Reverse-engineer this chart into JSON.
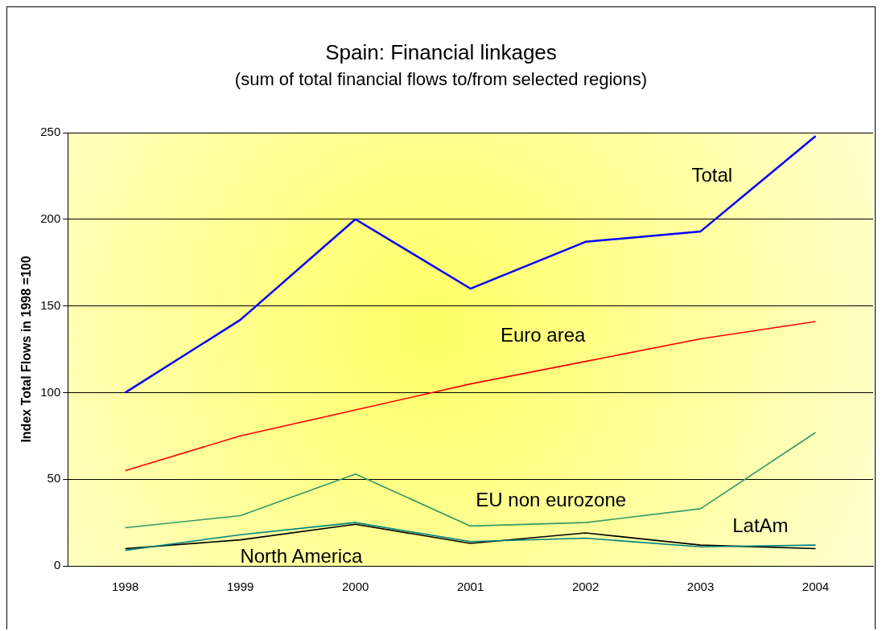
{
  "chart_data": {
    "type": "line",
    "title": "Spain: Financial linkages",
    "subtitle": "(sum of total financial flows to/from selected regions)",
    "ylabel": "Index Total Flows in 1998 =100",
    "categories": [
      "1998",
      "1999",
      "2000",
      "2001",
      "2002",
      "2003",
      "2004"
    ],
    "series": [
      {
        "name": "Total",
        "color": "#0000ff",
        "values": [
          100,
          142,
          200,
          160,
          187,
          193,
          248
        ]
      },
      {
        "name": "Euro area",
        "color": "#ff0000",
        "values": [
          55,
          75,
          90,
          105,
          118,
          131,
          141
        ]
      },
      {
        "name": "EU non eurozone",
        "color": "#339966",
        "values": [
          22,
          29,
          53,
          23,
          25,
          33,
          77
        ]
      },
      {
        "name": "LatAm",
        "color": "#008080",
        "values": [
          9,
          18,
          25,
          14,
          16,
          11,
          12
        ]
      },
      {
        "name": "North America",
        "color": "#000000",
        "values": [
          10,
          15,
          24,
          13,
          19,
          12,
          10
        ]
      }
    ],
    "ylim": [
      0,
      250
    ],
    "yticks": [
      0,
      50,
      100,
      150,
      200,
      250
    ],
    "grid": "y",
    "legend": false,
    "marker": "none",
    "line_style": "solid"
  }
}
